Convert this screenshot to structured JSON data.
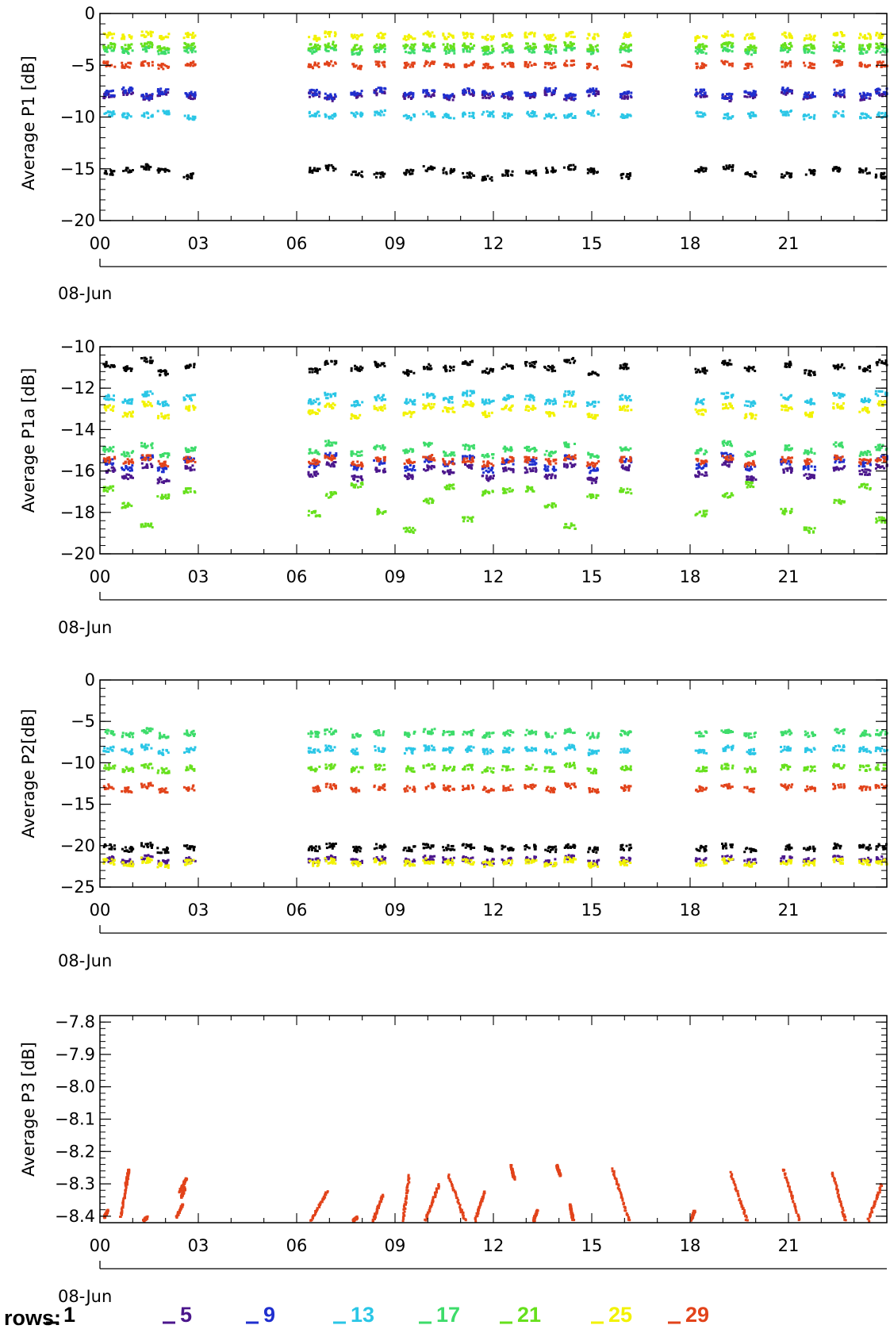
{
  "colors": {
    "row_1": "#000000",
    "row_5": "#4b168c",
    "row_9": "#1f2fcf",
    "row_13": "#2ac6e6",
    "row_17": "#3ddc6a",
    "row_21": "#66e01c",
    "row_25": "#f2f200",
    "row_29": "#e2431a"
  },
  "legend": {
    "title": "rows:",
    "items": [
      {
        "label": "1",
        "color": "#000000"
      },
      {
        "label": "5",
        "color": "#4b168c"
      },
      {
        "label": "9",
        "color": "#1f2fcf"
      },
      {
        "label": "13",
        "color": "#2ac6e6"
      },
      {
        "label": "17",
        "color": "#3ddc6a"
      },
      {
        "label": "21",
        "color": "#66e01c"
      },
      {
        "label": "25",
        "color": "#f2f200"
      },
      {
        "label": "29",
        "color": "#e2431a"
      }
    ]
  },
  "chart_data": [
    {
      "type": "scatter",
      "ylabel": "Average P1 [dB]",
      "xlabel": "08-Jun",
      "x_ticks": [
        "00",
        "03",
        "06",
        "09",
        "12",
        "15",
        "18",
        "21"
      ],
      "y_ticks": [
        "0",
        "-5",
        "-10",
        "-15",
        "-20"
      ],
      "ylim": [
        -20,
        0
      ],
      "xlim_hours": [
        0,
        24
      ],
      "data_gaps_hours": [
        [
          3,
          6
        ],
        [
          16.5,
          18
        ]
      ],
      "series": [
        {
          "color_key": "row_1",
          "values": [
            -15.3,
            -15,
            -14.7,
            -15.1,
            -15.6,
            -15.0,
            -14.8,
            -15.4,
            -15.5,
            -15.2,
            -14.9,
            -15.1,
            -15.5,
            -15.8,
            -15.3
          ]
        },
        {
          "color_key": "row_5",
          "values": [
            -7.8,
            -7.5,
            -8.0,
            -7.6,
            -7.9,
            -7.7,
            -8.1,
            -7.8,
            -7.5,
            -7.9,
            -7.7,
            -8.0,
            -7.6,
            -7.8,
            -7.9
          ]
        },
        {
          "color_key": "row_9",
          "values": [
            -7.6,
            -7.3,
            -7.9,
            -7.4,
            -7.7,
            -7.5,
            -7.9,
            -7.6,
            -7.3,
            -7.7,
            -7.5,
            -7.8,
            -7.4,
            -7.6,
            -7.7
          ]
        },
        {
          "color_key": "row_13",
          "values": [
            -9.6,
            -9.8,
            -9.7,
            -9.5,
            -9.9,
            -9.6,
            -9.8,
            -9.7,
            -9.5,
            -9.9,
            -9.6,
            -9.8,
            -9.7,
            -9.6,
            -9.8
          ]
        },
        {
          "color_key": "row_17",
          "values": [
            -3.4,
            -3.5,
            -3.3,
            -3.6,
            -3.4,
            -3.5,
            -3.3,
            -3.6,
            -3.4,
            -3.5,
            -3.3,
            -3.5,
            -3.4,
            -3.6,
            -3.4
          ]
        },
        {
          "color_key": "row_21",
          "values": [
            -3.0,
            -3.1,
            -2.9,
            -3.2,
            -3.0,
            -3.1,
            -2.9,
            -3.2,
            -3.0,
            -3.1,
            -2.9,
            -3.1,
            -3.0,
            -3.2,
            -3.0
          ]
        },
        {
          "color_key": "row_25",
          "values": [
            -2.0,
            -2.2,
            -1.9,
            -2.1,
            -2.0,
            -2.3,
            -1.9,
            -2.1,
            -2.0,
            -2.2,
            -1.9,
            -2.1,
            -2.0,
            -2.2,
            -2.0
          ]
        },
        {
          "color_key": "row_29",
          "values": [
            -4.8,
            -4.9,
            -4.7,
            -5.0,
            -4.8,
            -4.9,
            -4.7,
            -5.0,
            -4.8,
            -4.9,
            -4.7,
            -4.9,
            -4.8,
            -5.0,
            -4.8
          ]
        }
      ]
    },
    {
      "type": "scatter",
      "ylabel": "Average P1a [dB]",
      "xlabel": "08-Jun",
      "x_ticks": [
        "00",
        "03",
        "06",
        "09",
        "12",
        "15",
        "18",
        "21"
      ],
      "y_ticks": [
        "-10",
        "-12",
        "-14",
        "-16",
        "-18",
        "-20"
      ],
      "ylim": [
        -20,
        -10
      ],
      "xlim_hours": [
        0,
        24
      ],
      "data_gaps_hours": [
        [
          3,
          6
        ],
        [
          16.5,
          18
        ]
      ],
      "series": [
        {
          "color_key": "row_1",
          "values": [
            -10.8,
            -11.0,
            -10.6,
            -11.2,
            -10.9,
            -11.1,
            -10.7,
            -11.0,
            -10.8,
            -11.2,
            -10.9,
            -11.0,
            -10.7,
            -11.1,
            -10.9
          ]
        },
        {
          "color_key": "row_5",
          "values": [
            -15.9,
            -16.2,
            -15.7,
            -16.4,
            -15.8,
            -16.1,
            -15.6,
            -16.3,
            -15.9,
            -16.2,
            -15.8,
            -16.0,
            -15.7,
            -16.3,
            -15.9
          ]
        },
        {
          "color_key": "row_9",
          "values": [
            -15.5,
            -15.8,
            -15.3,
            -15.9,
            -15.4,
            -15.7,
            -15.2,
            -15.8,
            -15.5,
            -15.8,
            -15.4,
            -15.6,
            -15.3,
            -15.9,
            -15.5
          ]
        },
        {
          "color_key": "row_13",
          "values": [
            -12.4,
            -12.6,
            -12.2,
            -12.7,
            -12.4,
            -12.6,
            -12.3,
            -12.7,
            -12.4,
            -12.6,
            -12.3,
            -12.5,
            -12.2,
            -12.6,
            -12.4
          ]
        },
        {
          "color_key": "row_17",
          "values": [
            -14.9,
            -15.1,
            -14.7,
            -15.2,
            -14.9,
            -15.0,
            -14.6,
            -15.1,
            -14.8,
            -15.0,
            -14.7,
            -15.1,
            -14.8,
            -15.2,
            -14.9
          ]
        },
        {
          "color_key": "row_21",
          "values": [
            -16.8,
            -17.6,
            -18.6,
            -17.2,
            -16.9,
            -18.0,
            -17.1,
            -16.6,
            -17.9,
            -18.8,
            -17.4,
            -16.7,
            -18.3,
            -17.0,
            -16.9
          ]
        },
        {
          "color_key": "row_25",
          "values": [
            -12.9,
            -13.2,
            -12.7,
            -13.3,
            -12.9,
            -13.1,
            -12.8,
            -13.3,
            -12.9,
            -13.2,
            -12.8,
            -13.0,
            -12.7,
            -13.2,
            -12.9
          ]
        },
        {
          "color_key": "row_29",
          "values": [
            -15.4,
            -15.5,
            -15.3,
            -15.6,
            -15.4,
            -15.5,
            -15.3,
            -15.6,
            -15.4,
            -15.5,
            -15.3,
            -15.5,
            -15.4,
            -15.6,
            -15.4
          ]
        }
      ]
    },
    {
      "type": "scatter",
      "ylabel": "Average P2[dB]",
      "xlabel": "08-Jun",
      "x_ticks": [
        "00",
        "03",
        "06",
        "09",
        "12",
        "15",
        "18",
        "21"
      ],
      "y_ticks": [
        "0",
        "-5",
        "-10",
        "-15",
        "-20",
        "-25"
      ],
      "ylim": [
        -25,
        0
      ],
      "xlim_hours": [
        0,
        24
      ],
      "data_gaps_hours": [
        [
          3,
          6
        ],
        [
          16.5,
          18
        ]
      ],
      "series": [
        {
          "color_key": "row_1",
          "values": [
            -20.0,
            -20.3,
            -19.8,
            -20.4,
            -20.1,
            -20.2,
            -19.9,
            -20.3,
            -20.0,
            -20.2,
            -19.9,
            -20.1,
            -20.0,
            -20.3,
            -20.1
          ]
        },
        {
          "color_key": "row_5",
          "values": [
            -21.5,
            -21.8,
            -21.3,
            -21.9,
            -21.6,
            -21.7,
            -21.4,
            -21.8,
            -21.5,
            -21.7,
            -21.4,
            -21.6,
            -21.5,
            -21.8,
            -21.6
          ]
        },
        {
          "color_key": "row_13",
          "values": [
            -8.2,
            -8.5,
            -8.0,
            -8.6,
            -8.3,
            -8.4,
            -8.1,
            -8.5,
            -8.2,
            -8.4,
            -8.1,
            -8.3,
            -8.2,
            -8.5,
            -8.3
          ]
        },
        {
          "color_key": "row_17",
          "values": [
            -6.2,
            -6.5,
            -6.0,
            -6.6,
            -6.3,
            -6.4,
            -6.1,
            -6.5,
            -6.2,
            -6.4,
            -6.1,
            -6.3,
            -6.2,
            -6.5,
            -6.3
          ]
        },
        {
          "color_key": "row_21",
          "values": [
            -10.4,
            -10.7,
            -10.2,
            -10.8,
            -10.5,
            -10.6,
            -10.3,
            -10.7,
            -10.4,
            -10.6,
            -10.3,
            -10.5,
            -10.4,
            -10.7,
            -10.5
          ]
        },
        {
          "color_key": "row_25",
          "values": [
            -21.8,
            -22.1,
            -21.6,
            -22.2,
            -21.9,
            -22.0,
            -21.7,
            -22.1,
            -21.8,
            -22.0,
            -21.7,
            -21.9,
            -21.8,
            -22.1,
            -21.9
          ]
        },
        {
          "color_key": "row_29",
          "values": [
            -12.8,
            -13.1,
            -12.6,
            -13.2,
            -12.9,
            -13.0,
            -12.7,
            -13.1,
            -12.8,
            -13.0,
            -12.7,
            -12.9,
            -12.8,
            -13.1,
            -12.9
          ]
        }
      ]
    },
    {
      "type": "scatter",
      "ylabel": "Average P3 [dB]",
      "xlabel": "08-Jun",
      "x_ticks": [
        "00",
        "03",
        "06",
        "09",
        "12",
        "15",
        "18",
        "21"
      ],
      "y_ticks": [
        "-7.8",
        "-7.9",
        "-8.0",
        "-8.1",
        "-8.2",
        "-8.3",
        "-8.4"
      ],
      "ylim": [
        -8.42,
        -7.78
      ],
      "xlim_hours": [
        0,
        24
      ],
      "series": [
        {
          "color_key": "row_29",
          "ramps": [
            [
              0.1,
              -8.4,
              0.2,
              -8.38
            ],
            [
              0.6,
              -8.4,
              0.8,
              -8.28
            ],
            [
              0.75,
              -8.3,
              0.85,
              -8.25
            ],
            [
              1.3,
              -8.41,
              1.4,
              -8.4
            ],
            [
              2.3,
              -8.4,
              2.5,
              -8.36
            ],
            [
              2.4,
              -8.32,
              2.6,
              -8.28
            ],
            [
              2.45,
              -8.34,
              2.55,
              -8.31
            ],
            [
              6.4,
              -8.41,
              6.9,
              -8.32
            ],
            [
              7.7,
              -8.41,
              7.8,
              -8.4
            ],
            [
              8.3,
              -8.41,
              8.6,
              -8.33
            ],
            [
              9.2,
              -8.41,
              9.4,
              -8.27
            ],
            [
              9.9,
              -8.41,
              10.3,
              -8.3
            ],
            [
              10.6,
              -8.27,
              11.1,
              -8.41
            ],
            [
              11.4,
              -8.41,
              11.7,
              -8.32
            ],
            [
              12.5,
              -8.24,
              12.6,
              -8.28
            ],
            [
              13.2,
              -8.41,
              13.3,
              -8.38
            ],
            [
              13.9,
              -8.24,
              14.0,
              -8.27
            ],
            [
              14.3,
              -8.36,
              14.4,
              -8.41
            ],
            [
              15.6,
              -8.25,
              16.1,
              -8.41
            ],
            [
              18.0,
              -8.41,
              18.1,
              -8.38
            ],
            [
              19.2,
              -8.26,
              19.7,
              -8.41
            ],
            [
              20.8,
              -8.25,
              21.3,
              -8.41
            ],
            [
              22.3,
              -8.26,
              22.7,
              -8.41
            ],
            [
              23.4,
              -8.41,
              23.8,
              -8.3
            ]
          ]
        }
      ]
    }
  ]
}
